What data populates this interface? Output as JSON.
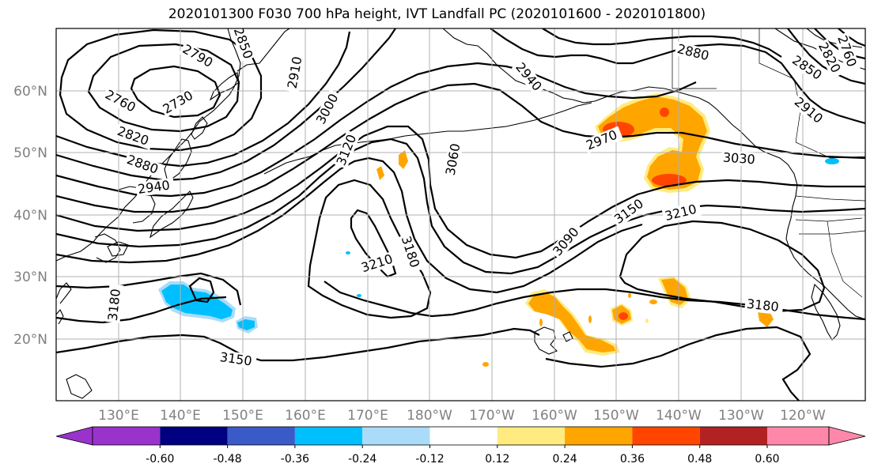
{
  "title": "2020101300 F030 700 hPa height, IVT Landfall PC (2020101600 - 2020101800)",
  "lat_labels": [
    "60°N",
    "50°N",
    "40°N",
    "30°N",
    "20°N"
  ],
  "lon_labels": [
    "130°E",
    "140°E",
    "150°E",
    "160°E",
    "170°E",
    "180°W",
    "170°W",
    "160°W",
    "150°W",
    "140°W",
    "130°W",
    "120°W"
  ],
  "contour_labels": [
    "2790",
    "2850",
    "2910",
    "2760",
    "2730",
    "2820",
    "2880",
    "2940",
    "3000",
    "3120",
    "2940",
    "3060",
    "2880",
    "2850",
    "2910",
    "2820",
    "2760",
    "2970",
    "3030",
    "3150",
    "3210",
    "3090",
    "3180",
    "3210",
    "3180",
    "3150",
    "3180"
  ],
  "colorbar": {
    "ticks": [
      "-0.60",
      "-0.48",
      "-0.36",
      "-0.24",
      "-0.12",
      "0.12",
      "0.24",
      "0.36",
      "0.48",
      "0.60"
    ],
    "colors": [
      "#9933cc",
      "#000080",
      "#3a5bc7",
      "#00bfff",
      "#aadcfa",
      "#ffffff",
      "#ffeb80",
      "#ffa500",
      "#ff4500",
      "#b22222",
      "#ff88aa"
    ]
  },
  "colors": {
    "ivt_positive_low": "#ffeb80",
    "ivt_positive_mid": "#ffa500",
    "ivt_positive_high": "#ff4500",
    "ivt_negative": "#00bfff",
    "ivt_negative_light": "#aadcfa",
    "coast": "#000000",
    "contour": "#000000"
  }
}
